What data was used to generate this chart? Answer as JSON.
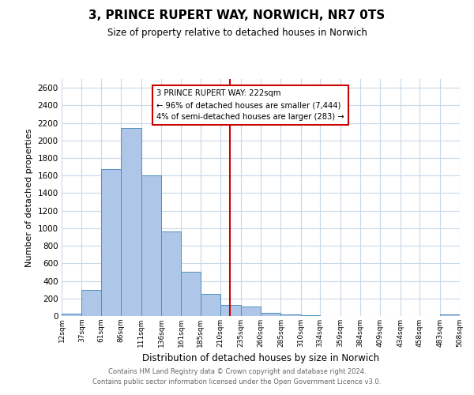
{
  "title": "3, PRINCE RUPERT WAY, NORWICH, NR7 0TS",
  "subtitle": "Size of property relative to detached houses in Norwich",
  "xlabel": "Distribution of detached houses by size in Norwich",
  "ylabel": "Number of detached properties",
  "bin_edges": [
    12,
    37,
    61,
    86,
    111,
    136,
    161,
    185,
    210,
    235,
    260,
    285,
    310,
    334,
    359,
    384,
    409,
    434,
    458,
    483,
    508
  ],
  "bar_heights": [
    25,
    300,
    1675,
    2140,
    1600,
    960,
    505,
    250,
    130,
    105,
    35,
    15,
    5,
    3,
    2,
    2,
    2,
    2,
    1,
    20
  ],
  "bar_color": "#aec6e8",
  "bar_edge_color": "#5090c0",
  "property_line_x": 222,
  "property_line_color": "#cc0000",
  "annotation_title": "3 PRINCE RUPERT WAY: 222sqm",
  "annotation_line1": "← 96% of detached houses are smaller (7,444)",
  "annotation_line2": "4% of semi-detached houses are larger (283) →",
  "annotation_box_color": "#ffffff",
  "annotation_border_color": "#cc0000",
  "ylim": [
    0,
    2700
  ],
  "yticks": [
    0,
    200,
    400,
    600,
    800,
    1000,
    1200,
    1400,
    1600,
    1800,
    2000,
    2200,
    2400,
    2600
  ],
  "footnote1": "Contains HM Land Registry data © Crown copyright and database right 2024.",
  "footnote2": "Contains public sector information licensed under the Open Government Licence v3.0.",
  "background_color": "#ffffff",
  "grid_color": "#c8d8e8",
  "tick_labels": [
    "12sqm",
    "37sqm",
    "61sqm",
    "86sqm",
    "111sqm",
    "136sqm",
    "161sqm",
    "185sqm",
    "210sqm",
    "235sqm",
    "260sqm",
    "285sqm",
    "310sqm",
    "334sqm",
    "359sqm",
    "384sqm",
    "409sqm",
    "434sqm",
    "458sqm",
    "483sqm",
    "508sqm"
  ]
}
